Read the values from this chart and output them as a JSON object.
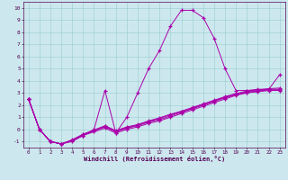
{
  "xlabel": "Windchill (Refroidissement éolien,°C)",
  "x": [
    0,
    1,
    2,
    3,
    4,
    5,
    6,
    7,
    8,
    9,
    10,
    11,
    12,
    13,
    14,
    15,
    16,
    17,
    18,
    19,
    20,
    21,
    22,
    23
  ],
  "line1": [
    2.5,
    0.0,
    -1.0,
    -1.2,
    -1.0,
    -0.5,
    0.0,
    3.2,
    -0.3,
    1.0,
    3.0,
    5.0,
    6.5,
    8.5,
    9.8,
    9.8,
    9.2,
    7.5,
    5.0,
    3.2,
    3.2,
    3.3,
    3.3,
    4.5
  ],
  "line2": [
    2.5,
    0.0,
    -1.0,
    -1.2,
    -0.9,
    -0.5,
    -0.2,
    0.1,
    -0.3,
    0.0,
    0.2,
    0.5,
    0.7,
    1.0,
    1.3,
    1.6,
    1.9,
    2.2,
    2.5,
    2.8,
    3.0,
    3.1,
    3.2,
    3.2
  ],
  "line3": [
    2.5,
    0.0,
    -1.0,
    -1.2,
    -0.9,
    -0.5,
    -0.1,
    0.2,
    -0.2,
    0.1,
    0.3,
    0.6,
    0.8,
    1.1,
    1.4,
    1.7,
    2.0,
    2.3,
    2.6,
    2.85,
    3.05,
    3.15,
    3.25,
    3.25
  ],
  "line4": [
    2.5,
    0.0,
    -1.0,
    -1.2,
    -0.9,
    -0.4,
    -0.1,
    0.25,
    -0.15,
    0.15,
    0.35,
    0.65,
    0.9,
    1.2,
    1.45,
    1.75,
    2.05,
    2.35,
    2.65,
    2.9,
    3.1,
    3.2,
    3.3,
    3.3
  ],
  "line5": [
    2.5,
    0.0,
    -1.0,
    -1.2,
    -0.85,
    -0.4,
    -0.05,
    0.3,
    -0.1,
    0.2,
    0.4,
    0.7,
    0.95,
    1.25,
    1.5,
    1.8,
    2.1,
    2.4,
    2.7,
    2.95,
    3.15,
    3.25,
    3.35,
    3.4
  ],
  "line_color": "#aa00aa",
  "bg_color": "#cce8ee",
  "grid_color": "#99cccc",
  "ylim": [
    -1.5,
    10.5
  ],
  "xlim": [
    -0.5,
    23.5
  ],
  "yticks": [
    -1,
    0,
    1,
    2,
    3,
    4,
    5,
    6,
    7,
    8,
    9,
    10
  ],
  "xticks": [
    0,
    1,
    2,
    3,
    4,
    5,
    6,
    7,
    8,
    9,
    10,
    11,
    12,
    13,
    14,
    15,
    16,
    17,
    18,
    19,
    20,
    21,
    22,
    23
  ]
}
